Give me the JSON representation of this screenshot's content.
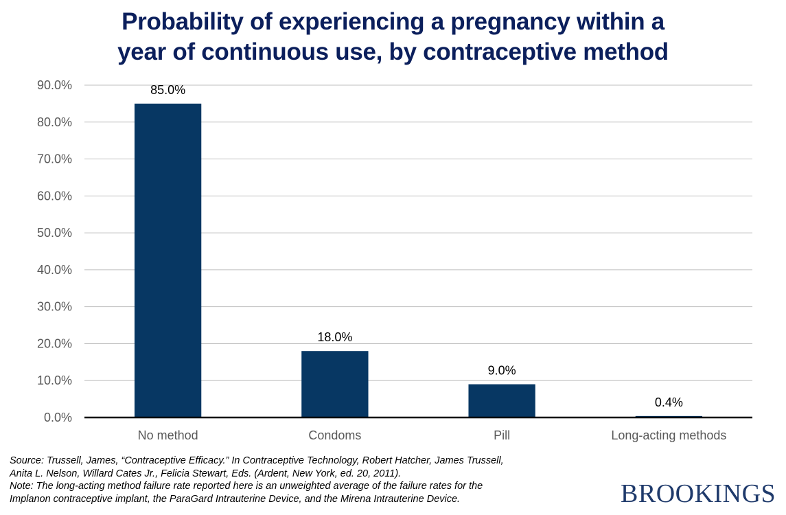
{
  "chart_data": {
    "type": "bar",
    "title": "Probability of experiencing a pregnancy within a year of continuous use, by contraceptive method",
    "title_lines": [
      "Probability of experiencing a pregnancy within a",
      "year of continuous use, by contraceptive method"
    ],
    "xlabel": "",
    "ylabel": "",
    "categories": [
      "No method",
      "Condoms",
      "Pill",
      "Long-acting methods"
    ],
    "values": [
      85.0,
      18.0,
      9.0,
      0.4
    ],
    "data_labels": [
      "85.0%",
      "18.0%",
      "9.0%",
      "0.4%"
    ],
    "ylim": [
      0,
      90
    ],
    "yticks": [
      0,
      10,
      20,
      30,
      40,
      50,
      60,
      70,
      80,
      90
    ],
    "ytick_labels": [
      "0.0%",
      "10.0%",
      "20.0%",
      "30.0%",
      "40.0%",
      "50.0%",
      "60.0%",
      "70.0%",
      "80.0%",
      "90.0%"
    ],
    "grid": true,
    "legend": "none",
    "colors": {
      "bar": "#073763",
      "gridline": "#bfbfbf",
      "axis": "#000000",
      "title": "#0b1f5c"
    }
  },
  "footnote": {
    "lines": [
      "Source: Trussell, James, “Contraceptive Efficacy.” In Contraceptive Technology, Robert Hatcher, James Trussell,",
      "Anita L. Nelson, Willard Cates  Jr., Felicia Stewart, Eds. (Ardent, New York, ed. 20, 2011).",
      "Note: The long-acting method failure rate reported here is an unweighted  average of the failure rates for the",
      "Implanon contraceptive implant, the ParaGard Intrauterine Device, and the Mirena Intrauterine Device."
    ]
  },
  "logo": {
    "text": "BROOKINGS"
  }
}
